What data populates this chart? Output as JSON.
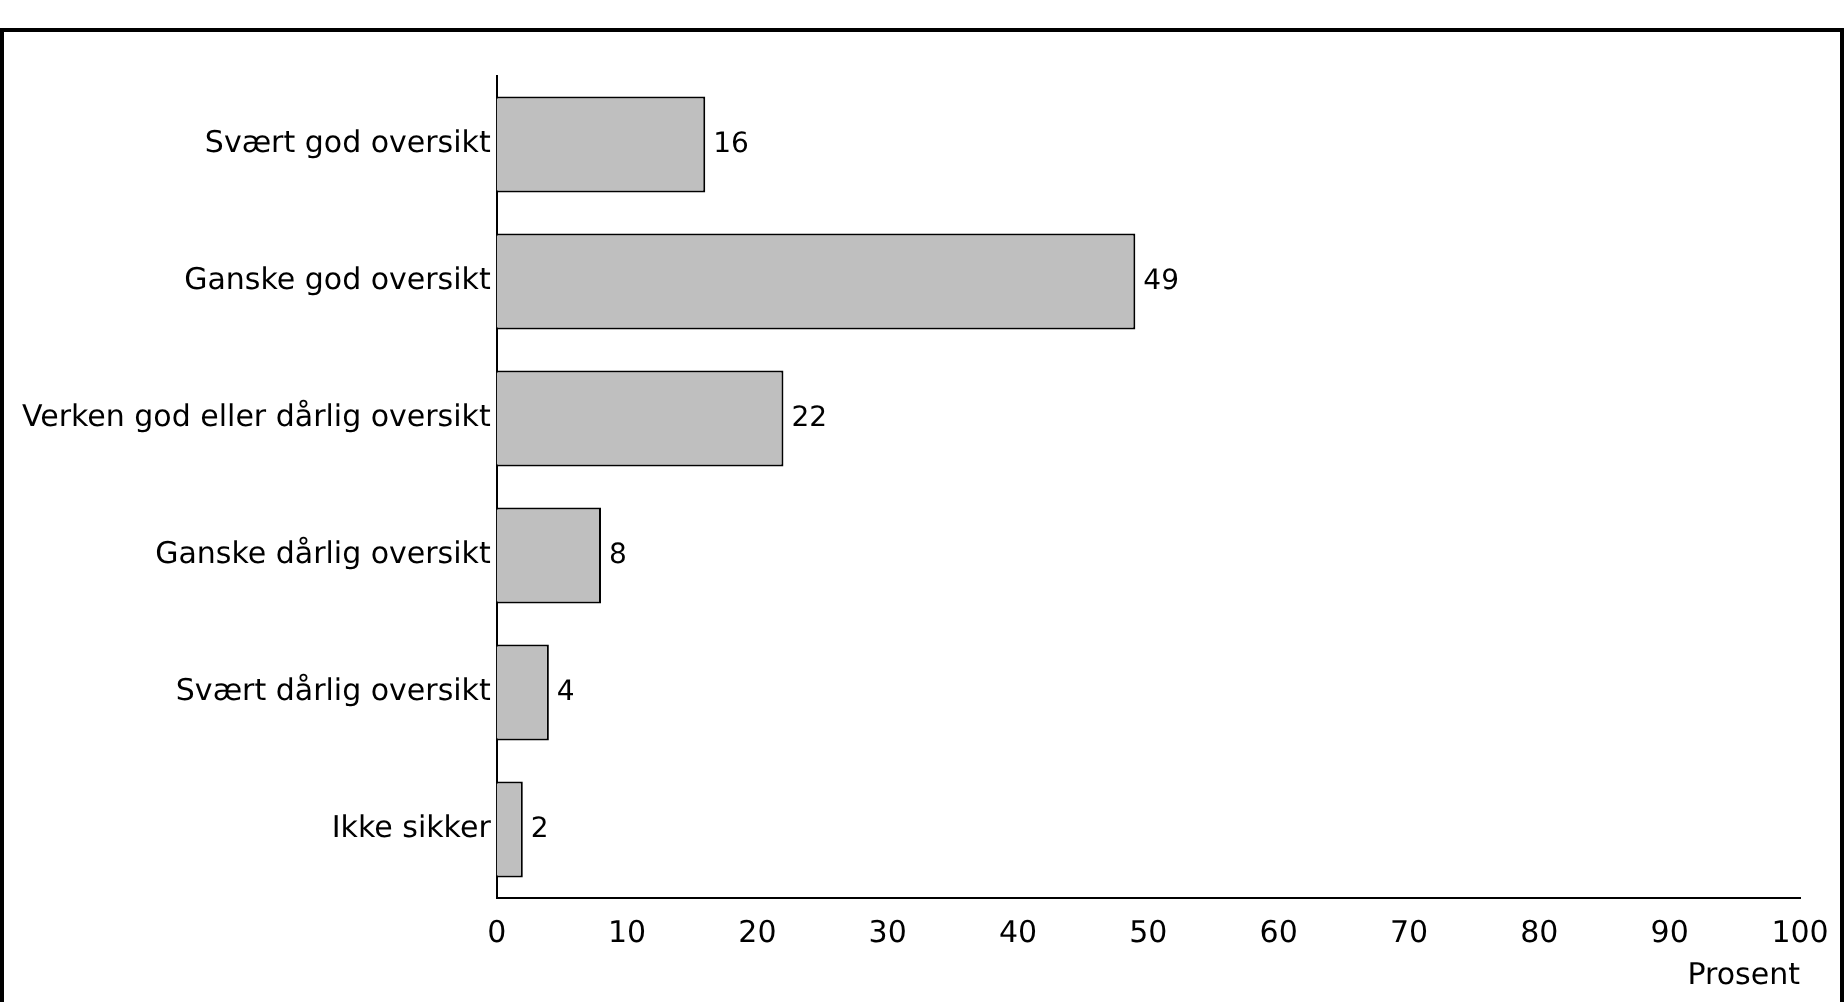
{
  "chart_data": {
    "type": "bar",
    "orientation": "horizontal",
    "categories": [
      "Svært god oversikt",
      "Ganske god oversikt",
      "Verken god eller dårlig oversikt",
      "Ganske dårlig oversikt",
      "Svært dårlig oversikt",
      "Ikke sikker"
    ],
    "values": [
      16,
      49,
      22,
      8,
      4,
      2
    ],
    "color": "#bfbfbf",
    "xlim": [
      0,
      100
    ],
    "xticks": [
      0,
      10,
      20,
      30,
      40,
      50,
      60,
      70,
      80,
      90,
      100
    ],
    "xlabel": "Prosent",
    "data_labels": true,
    "grid": false,
    "legend": false
  }
}
